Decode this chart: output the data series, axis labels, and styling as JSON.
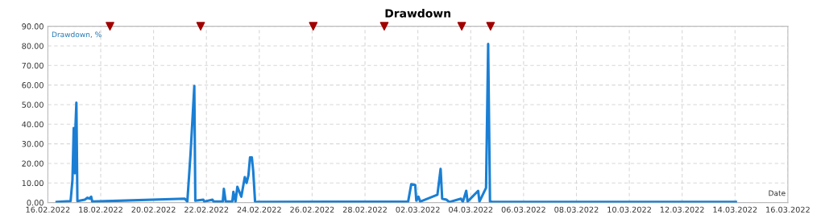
{
  "chart_data": {
    "type": "line",
    "title": "Drawdown",
    "xlabel": "Date",
    "ylabel": "Drawdown, %",
    "xlim": [
      "2022-02-16",
      "2022-03-16"
    ],
    "xticks": [
      {
        "value": "2022-02-16",
        "label": "16.02.2022"
      },
      {
        "value": "2022-02-18",
        "label": "18.02.2022"
      },
      {
        "value": "2022-02-20",
        "label": "20.02.2022"
      },
      {
        "value": "2022-02-22",
        "label": "22.02.2022"
      },
      {
        "value": "2022-02-24",
        "label": "24.02.2022"
      },
      {
        "value": "2022-02-26",
        "label": "26.02.2022"
      },
      {
        "value": "2022-02-28",
        "label": "28.02.2022"
      },
      {
        "value": "2022-03-02",
        "label": "02.03.2022"
      },
      {
        "value": "2022-03-04",
        "label": "04.03.2022"
      },
      {
        "value": "2022-03-06",
        "label": "06.03.2022"
      },
      {
        "value": "2022-03-08",
        "label": "08.03.2022"
      },
      {
        "value": "2022-03-10",
        "label": "10.03.2022"
      },
      {
        "value": "2022-03-12",
        "label": "12.03.2022"
      },
      {
        "value": "2022-03-14",
        "label": "14.03.2022"
      },
      {
        "value": "2022-03-16",
        "label": "16.03.2022"
      }
    ],
    "ylim": [
      0,
      90
    ],
    "yticks": [
      {
        "value": 0,
        "label": "0.00"
      },
      {
        "value": 10,
        "label": "10.00"
      },
      {
        "value": 20,
        "label": "20.00"
      },
      {
        "value": 30,
        "label": "30.00"
      },
      {
        "value": 40,
        "label": "40.00"
      },
      {
        "value": 50,
        "label": "50.00"
      },
      {
        "value": 60,
        "label": "60.00"
      },
      {
        "value": 70,
        "label": "70.00"
      },
      {
        "value": 80,
        "label": "80.00"
      },
      {
        "value": 90,
        "label": "90.00"
      }
    ],
    "grid": true,
    "legend": false,
    "marker": "none",
    "line_style": "solid",
    "series": [
      {
        "color": "#1a7fd4",
        "x": [
          "2022-02-16T08:00",
          "2022-02-16T20:40",
          "2022-02-16T22:20",
          "2022-02-16T23:30",
          "2022-02-17T00:30",
          "2022-02-17T01:10",
          "2022-02-17T01:55",
          "2022-02-17T02:50",
          "2022-02-17T09:35",
          "2022-02-17T12:00",
          "2022-02-17T13:55",
          "2022-02-17T15:20",
          "2022-02-17T16:20",
          "2022-02-21T04:20",
          "2022-02-21T06:40",
          "2022-02-21T09:35",
          "2022-02-21T13:00",
          "2022-02-21T13:55",
          "2022-02-21T21:10",
          "2022-02-21T22:05",
          "2022-02-22T05:30",
          "2022-02-22T06:30",
          "2022-02-22T14:50",
          "2022-02-22T15:50",
          "2022-02-22T17:30",
          "2022-02-22T23:30",
          "2022-02-23T00:30",
          "2022-02-23T02:25",
          "2022-02-23T04:05",
          "2022-02-23T07:40",
          "2022-02-23T10:50",
          "2022-02-23T12:30",
          "2022-02-23T14:10",
          "2022-02-23T15:35",
          "2022-02-23T17:15",
          "2022-02-23T18:30",
          "2022-02-23T20:10",
          "2022-02-23T21:35",
          "2022-03-01T15:10",
          "2022-03-01T18:00",
          "2022-03-01T21:35",
          "2022-03-01T22:35",
          "2022-03-02T00:30",
          "2022-03-02T02:10",
          "2022-03-02T17:45",
          "2022-03-02T20:40",
          "2022-03-02T22:05",
          "2022-03-03T01:55",
          "2022-03-03T04:35",
          "2022-03-03T15:10",
          "2022-03-03T16:50",
          "2022-03-03T19:55",
          "2022-03-03T21:10",
          "2022-03-04T06:45",
          "2022-03-04T07:55",
          "2022-03-04T13:55",
          "2022-03-04T15:50",
          "2022-03-04T17:30",
          "2022-03-04T19:55",
          "2022-03-14T00:45"
        ],
        "values": [
          0.3,
          0.8,
          11.5,
          38,
          15,
          40,
          51,
          0.8,
          1.5,
          2.5,
          2,
          3,
          0.5,
          2,
          0.5,
          25,
          59.5,
          1,
          1.5,
          0.5,
          1.5,
          0.5,
          0.5,
          7,
          0.5,
          0.5,
          5.5,
          0.5,
          8,
          3,
          13,
          10,
          14,
          23,
          23,
          16,
          0.5,
          0.3,
          0.5,
          9.4,
          9,
          1,
          3,
          0.5,
          4,
          17.2,
          2,
          1.5,
          0.3,
          2,
          0.3,
          6,
          0.5,
          6,
          0.5,
          7.5,
          81,
          0.5,
          0.3,
          0.3
        ]
      },
      {
        "type": "scatter",
        "color": "#a00000",
        "marker": "triangle",
        "x": [
          "2022-02-18T08:25",
          "2022-02-21T18:45",
          "2022-02-26T01:00",
          "2022-02-28T17:30",
          "2022-03-03T15:50",
          "2022-03-04T18:00"
        ],
        "values": [
          90,
          90,
          90,
          90,
          90,
          90
        ]
      }
    ]
  }
}
